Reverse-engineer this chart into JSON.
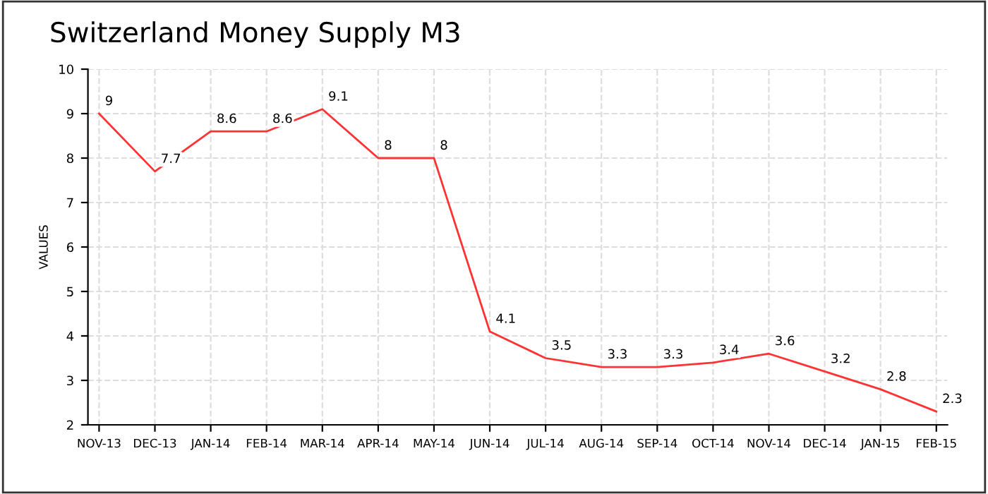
{
  "chart_data": {
    "type": "line",
    "title": "Switzerland Money Supply M3",
    "ylabel": "VALUES",
    "categories": [
      "NOV-13",
      "DEC-13",
      "JAN-14",
      "FEB-14",
      "MAR-14",
      "APR-14",
      "MAY-14",
      "JUN-14",
      "JUL-14",
      "AUG-14",
      "SEP-14",
      "OCT-14",
      "NOV-14",
      "DEC-14",
      "JAN-15",
      "FEB-15"
    ],
    "series": [
      {
        "color": "#ff3333",
        "values": [
          9,
          7.7,
          8.6,
          8.6,
          9.1,
          8,
          8,
          4.1,
          3.5,
          3.3,
          3.3,
          3.4,
          3.6,
          3.2,
          2.8,
          2.3
        ]
      }
    ],
    "ylim": [
      2,
      10
    ],
    "yticks": [
      2,
      3,
      4,
      5,
      6,
      7,
      8,
      9,
      10
    ],
    "grid": true,
    "data_labels": true,
    "marker": "none",
    "line_style": "solid",
    "legend": false
  }
}
